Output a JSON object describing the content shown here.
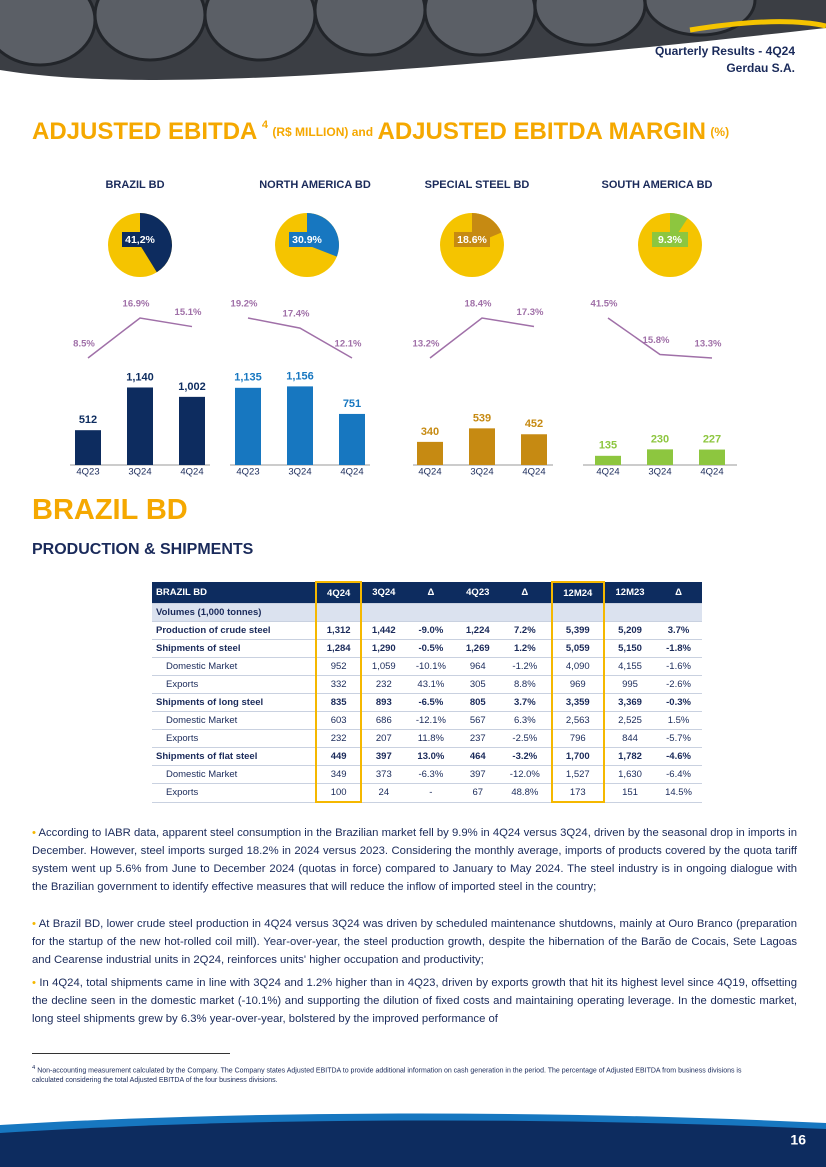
{
  "header": {
    "report": "Quarterly Results - 4Q24",
    "company": "Gerdau S.A."
  },
  "section_title": {
    "main": "ADJUSTED EBITDA",
    "footnote_ref": "4",
    "unit": "(R$ MILLION) and",
    "second": "ADJUSTED EBITDA MARGIN",
    "second_unit": "(%)"
  },
  "chart_data": [
    {
      "type": "bar",
      "title": "BRAZIL BD",
      "color": "#0d2c5f",
      "share": {
        "value": 41.2,
        "label": "41,2%"
      },
      "categories": [
        "4Q23",
        "3Q24",
        "4Q24"
      ],
      "values": [
        512,
        1140,
        1002
      ],
      "value_labels": [
        "512",
        "1,140",
        "1,002"
      ],
      "margin": {
        "values": [
          8.5,
          16.9,
          15.1
        ],
        "value_labels": [
          "8.5%",
          "16.9%",
          "15.1%"
        ]
      }
    },
    {
      "type": "bar",
      "title": "NORTH AMERICA BD",
      "color": "#1777c0",
      "share": {
        "value": 30.9,
        "label": "30.9%"
      },
      "categories": [
        "4Q23",
        "3Q24",
        "4Q24"
      ],
      "values": [
        1135,
        1156,
        751
      ],
      "value_labels": [
        "1,135",
        "1,156",
        "751"
      ],
      "margin": {
        "values": [
          19.2,
          17.4,
          12.1
        ],
        "value_labels": [
          "19.2%",
          "17.4%",
          "12.1%"
        ]
      }
    },
    {
      "type": "bar",
      "title": "SPECIAL STEEL BD",
      "color": "#c68a12",
      "share": {
        "value": 18.6,
        "label": "18.6%"
      },
      "categories": [
        "4Q24",
        "3Q24",
        "4Q24"
      ],
      "values": [
        340,
        539,
        452
      ],
      "value_labels": [
        "340",
        "539",
        "452"
      ],
      "margin": {
        "values": [
          13.2,
          18.4,
          17.3
        ],
        "value_labels": [
          "13.2%",
          "18.4%",
          "17.3%"
        ]
      }
    },
    {
      "type": "bar",
      "title": "SOUTH AMERICA BD",
      "color": "#8dc63f",
      "share": {
        "value": 9.3,
        "label": "9.3%"
      },
      "categories": [
        "4Q24",
        "3Q24",
        "4Q24"
      ],
      "values": [
        135,
        230,
        227
      ],
      "value_labels": [
        "135",
        "230",
        "227"
      ],
      "margin": {
        "values": [
          41.5,
          15.8,
          13.3
        ],
        "value_labels": [
          "41.5%",
          "15.8%",
          "13.3%"
        ]
      }
    }
  ],
  "section": {
    "title": "BRAZIL BD",
    "subtitle": "PRODUCTION & SHIPMENTS"
  },
  "table": {
    "header": [
      "BRAZIL BD",
      "4Q24",
      "3Q24",
      "Δ",
      "4Q23",
      "Δ",
      "12M24",
      "12M23",
      "Δ"
    ],
    "rows": [
      [
        "Volumes (1,000 tonnes)"
      ],
      [
        "Production of crude steel",
        "1,312",
        "1,442",
        "-9.0%",
        "1,224",
        "7.2%",
        "5,399",
        "5,209",
        "3.7%"
      ],
      [
        "Shipments of steel",
        "1,284",
        "1,290",
        "-0.5%",
        "1,269",
        "1.2%",
        "5,059",
        "5,150",
        "-1.8%"
      ],
      [
        "Domestic Market",
        "952",
        "1,059",
        "-10.1%",
        "964",
        "-1.2%",
        "4,090",
        "4,155",
        "-1.6%"
      ],
      [
        "Exports",
        "332",
        "232",
        "43.1%",
        "305",
        "8.8%",
        "969",
        "995",
        "-2.6%"
      ],
      [
        "Shipments of long steel",
        "835",
        "893",
        "-6.5%",
        "805",
        "3.7%",
        "3,359",
        "3,369",
        "-0.3%"
      ],
      [
        "Domestic Market",
        "603",
        "686",
        "-12.1%",
        "567",
        "6.3%",
        "2,563",
        "2,525",
        "1.5%"
      ],
      [
        "Exports",
        "232",
        "207",
        "11.8%",
        "237",
        "-2.5%",
        "796",
        "844",
        "-5.7%"
      ],
      [
        "Shipments of flat steel",
        "449",
        "397",
        "13.0%",
        "464",
        "-3.2%",
        "1,700",
        "1,782",
        "-4.6%"
      ],
      [
        "Domestic Market",
        "349",
        "373",
        "-6.3%",
        "397",
        "-12.0%",
        "1,527",
        "1,630",
        "-6.4%"
      ],
      [
        "Exports",
        "100",
        "24",
        "-",
        "67",
        "48.8%",
        "173",
        "151",
        "14.5%"
      ]
    ]
  },
  "paragraphs": [
    "According to IABR data, apparent steel consumption in the Brazilian market fell by 9.9% in 4Q24 versus 3Q24, driven by the seasonal drop in imports in December. However, steel imports surged 18.2% in 2024 versus 2023. Considering the monthly average, imports of products covered by the quota tariff system went up 5.6% from June to December 2024 (quotas in force) compared to January to May 2024. The steel industry is in ongoing dialogue with the Brazilian government to identify effective measures that will reduce the inflow of imported steel in the country;",
    "At Brazil BD, lower crude steel production in 4Q24 versus 3Q24 was driven by scheduled maintenance shutdowns, mainly at Ouro Branco (preparation for the startup of the new hot-rolled coil mill). Year-over-year, the steel production growth, despite the hibernation of the Barão de Cocais, Sete Lagoas and Cearense industrial units in 2Q24, reinforces units' higher occupation and productivity;",
    "In 4Q24, total shipments came in line with 3Q24 and 1.2% higher than in 4Q23, driven by exports growth that hit its highest level since 4Q19, offsetting the decline seen in the domestic market (-10.1%) and supporting the dilution of fixed costs and maintaining operating leverage. In the domestic market, long steel shipments grew by 6.3% year-over-year, bolstered by the improved performance of"
  ],
  "footnote": {
    "marker": "4",
    "text": "Non-accounting measurement calculated by the Company. The Company states Adjusted EBITDA to provide additional information on cash generation in the period. The percentage of Adjusted EBITDA from business divisions is calculated considering the total Adjusted EBITDA of the four business divisions."
  },
  "page_number": "16"
}
